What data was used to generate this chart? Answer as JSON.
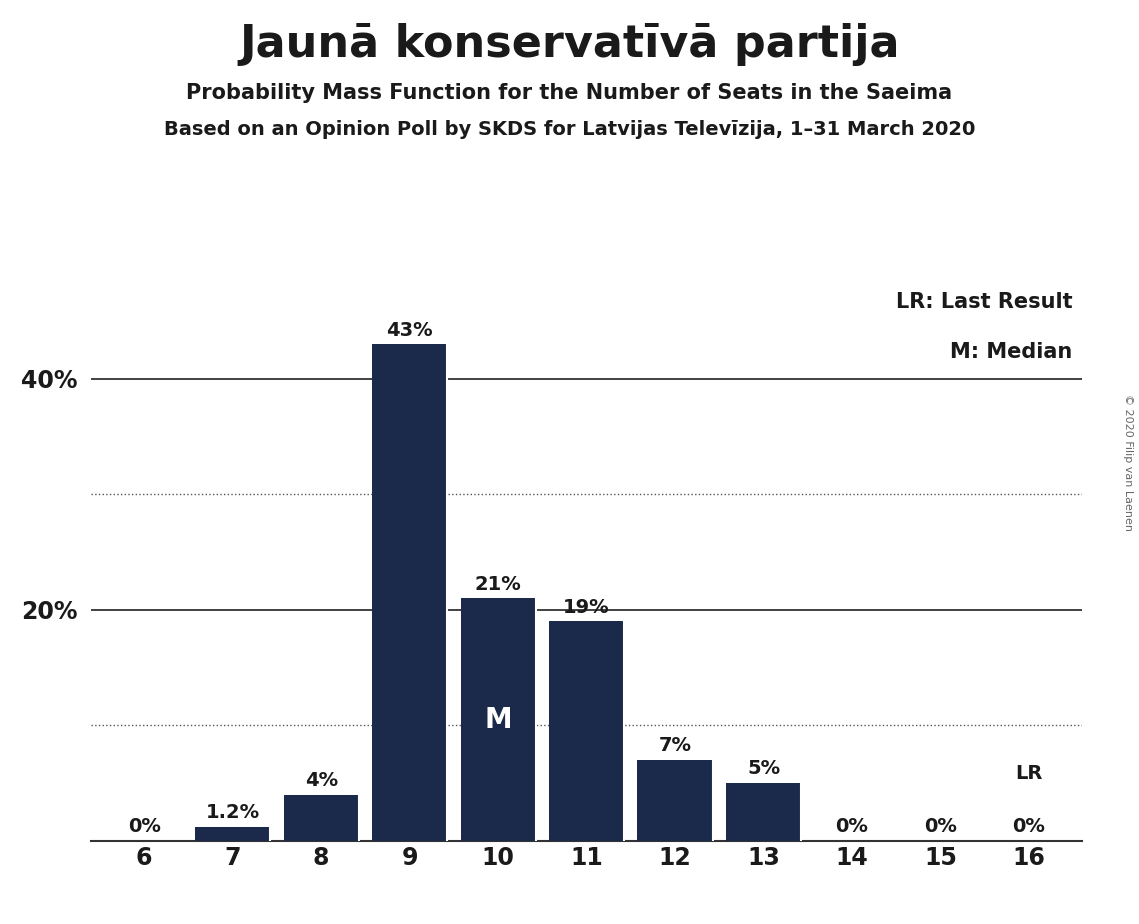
{
  "title": "Jaunā konservatīvā partija",
  "subtitle1": "Probability Mass Function for the Number of Seats in the Saeima",
  "subtitle2": "Based on an Opinion Poll by SKDS for Latvijas Televīzija, 1–31 March 2020",
  "copyright": "© 2020 Filip van Laenen",
  "categories": [
    6,
    7,
    8,
    9,
    10,
    11,
    12,
    13,
    14,
    15,
    16
  ],
  "values": [
    0.0,
    1.2,
    4.0,
    43.0,
    21.0,
    19.0,
    7.0,
    5.0,
    0.0,
    0.0,
    0.0
  ],
  "labels": [
    "0%",
    "1.2%",
    "4%",
    "43%",
    "21%",
    "19%",
    "7%",
    "5%",
    "0%",
    "0%",
    "0%"
  ],
  "bar_color": "#1b2a4a",
  "background_color": "#ffffff",
  "solid_lines": [
    0,
    20,
    40
  ],
  "dotted_lines": [
    10,
    30
  ],
  "ytick_positions": [
    20,
    40
  ],
  "ytick_labels": [
    "20%",
    "40%"
  ],
  "ylim": [
    0,
    48
  ],
  "median_seat": 10,
  "lr_seat": 16,
  "legend_lr": "LR: Last Result",
  "legend_m": "M: Median",
  "annotation_m": "M",
  "annotation_lr": "LR"
}
